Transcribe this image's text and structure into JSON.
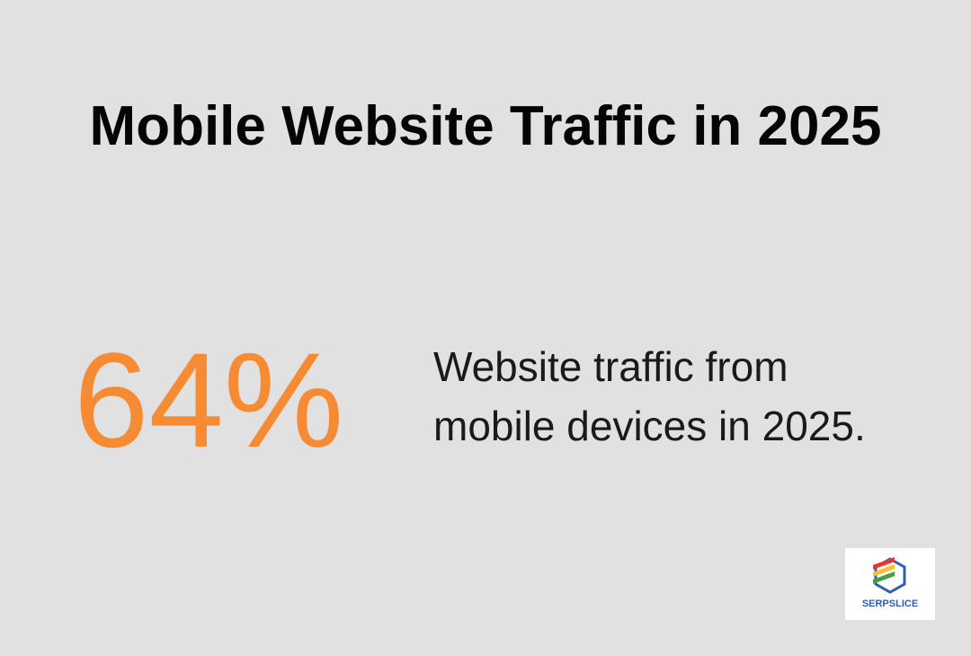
{
  "title": "Mobile Website Traffic in 2025",
  "stat": {
    "value": "64%",
    "description": "Website traffic from mobile devices in 2025."
  },
  "logo": {
    "text": "SERPSLICE"
  }
}
